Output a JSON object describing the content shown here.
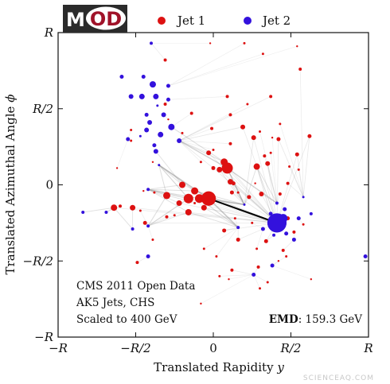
{
  "logo": {
    "text_m": "M",
    "text_od": "OD"
  },
  "legend": [
    {
      "label": "Jet 1",
      "color": "#dd1111"
    },
    {
      "label": "Jet 2",
      "color": "#3311dd"
    }
  ],
  "info": {
    "line1": "CMS 2011 Open Data",
    "line2": "AK5 Jets, CHS",
    "line3": "Scaled to 400 GeV",
    "emd_label": "EMD",
    "emd_value": ": 159.3 GeV"
  },
  "watermark": "SCIENCEAQ.COM",
  "chart_data": {
    "type": "scatter",
    "xlabel_main": "Translated Rapidity ",
    "xlabel_var": "y",
    "ylabel_main": "Translated Azimuthal Angle ",
    "ylabel_var": "ϕ",
    "xlim": [
      -1,
      1
    ],
    "ylim": [
      -1,
      1
    ],
    "x_ticks": [
      {
        "value": -1,
        "label": "−R"
      },
      {
        "value": -0.5,
        "label": "−R/2"
      },
      {
        "value": 0,
        "label": "0"
      },
      {
        "value": 0.5,
        "label": "R/2"
      },
      {
        "value": 1,
        "label": "R"
      }
    ],
    "y_ticks": [
      {
        "value": -1,
        "label": "−R"
      },
      {
        "value": -0.5,
        "label": "−R/2"
      },
      {
        "value": 0,
        "label": "0"
      },
      {
        "value": 0.5,
        "label": "R/2"
      },
      {
        "value": 1,
        "label": "R"
      }
    ],
    "series": [
      {
        "name": "Jet 1",
        "color": "#dd1111",
        "points": [
          [
            -0.03,
            -0.09,
            9
          ],
          [
            0.09,
            0.11,
            7
          ],
          [
            -0.16,
            -0.09,
            6
          ],
          [
            -0.09,
            -0.09,
            5.5
          ],
          [
            -0.12,
            -0.04,
            4.5
          ],
          [
            0.07,
            0.15,
            4.5
          ],
          [
            -0.3,
            -0.07,
            4.5
          ],
          [
            -0.2,
            0.0,
            4
          ],
          [
            -0.16,
            -0.18,
            4
          ],
          [
            -0.06,
            -0.15,
            3.5
          ],
          [
            0.28,
            0.12,
            4
          ],
          [
            0.04,
            0.1,
            3.5
          ],
          [
            -0.22,
            -0.12,
            3.5
          ],
          [
            -0.64,
            -0.15,
            4
          ],
          [
            -0.52,
            -0.15,
            3.5
          ],
          [
            0.11,
            0.02,
            3.5
          ],
          [
            0.26,
            0.31,
            3
          ],
          [
            0.31,
            -0.06,
            3
          ],
          [
            0.35,
            0.14,
            3
          ],
          [
            0.19,
            0.38,
            3
          ],
          [
            -0.03,
            0.21,
            3
          ],
          [
            0.07,
            -0.3,
            2.5
          ],
          [
            0.12,
            -0.05,
            2.5
          ],
          [
            0.0,
            0.11,
            2.5
          ],
          [
            0.42,
            0.3,
            2.5
          ],
          [
            0.16,
            -0.36,
            2.5
          ],
          [
            0.23,
            -0.08,
            2.5
          ],
          [
            -0.44,
            -0.25,
            2.5
          ],
          [
            0.34,
            -0.37,
            2.5
          ],
          [
            0.48,
            -0.22,
            2.5
          ],
          [
            0.13,
            0.01,
            2.5
          ],
          [
            0.54,
            0.2,
            2.5
          ],
          [
            0.62,
            0.32,
            2.5
          ],
          [
            0.45,
            -0.43,
            2
          ],
          [
            0.29,
            -0.54,
            2
          ],
          [
            0.33,
            0.19,
            2
          ],
          [
            0.11,
            0.27,
            2
          ],
          [
            0.12,
            -0.56,
            2
          ],
          [
            -0.49,
            -0.51,
            2
          ],
          [
            -0.6,
            -0.14,
            2
          ],
          [
            0.52,
            -0.31,
            2
          ],
          [
            0.43,
            -0.06,
            2
          ],
          [
            0.48,
            0.01,
            2
          ],
          [
            0.09,
            0.58,
            2
          ],
          [
            0.56,
            0.76,
            2
          ],
          [
            0.37,
            0.58,
            2
          ],
          [
            -0.3,
            -0.21,
            2
          ],
          [
            -0.31,
            0.82,
            2
          ],
          [
            -0.31,
            0.53,
            2
          ],
          [
            -0.14,
            0.47,
            2
          ],
          [
            -0.01,
            0.37,
            2
          ],
          [
            0.11,
            0.46,
            2
          ],
          [
            0.3,
            0.35,
            1.5
          ],
          [
            0.43,
            0.4,
            1.5
          ],
          [
            0.49,
            0.12,
            1.5
          ],
          [
            0.55,
            0.1,
            1.5
          ],
          [
            -0.47,
            -0.17,
            1.5
          ],
          [
            -0.39,
            -0.36,
            1.5
          ],
          [
            -0.06,
            -0.42,
            1.5
          ],
          [
            0.02,
            -0.47,
            1.5
          ],
          [
            0.14,
            -0.22,
            1.5
          ],
          [
            0.25,
            -0.25,
            1.5
          ],
          [
            0.28,
            -0.42,
            1.5
          ],
          [
            0.35,
            -0.64,
            1.5
          ],
          [
            0.3,
            -0.68,
            1.5
          ],
          [
            0.47,
            -0.47,
            1.5
          ],
          [
            0.58,
            -0.26,
            1.5
          ],
          [
            0.37,
            0.21,
            1.5
          ],
          [
            0.22,
            0.53,
            1.5
          ],
          [
            -0.2,
            0.34,
            1.5
          ],
          [
            -0.08,
            0.15,
            1.5
          ],
          [
            -0.12,
            -0.12,
            1.5
          ],
          [
            -0.53,
            0.29,
            1.5
          ],
          [
            -0.53,
            0.36,
            1.5
          ],
          [
            -0.25,
            -0.2,
            1.5
          ],
          [
            -0.38,
            -0.05,
            1.5
          ],
          [
            0.04,
            -0.6,
            1.5
          ],
          [
            0.16,
            -0.05,
            1.5
          ],
          [
            0.0,
            0.23,
            1.5
          ],
          [
            0.32,
            0.86,
            1.5
          ],
          [
            0.2,
            0.93,
            1.5
          ],
          [
            -0.02,
            0.93,
            1.2
          ],
          [
            0.54,
            0.91,
            1.2
          ],
          [
            0.38,
            0.31,
            1.2
          ],
          [
            -0.08,
            -0.78,
            1.2
          ],
          [
            0.42,
            -0.5,
            1.2
          ],
          [
            -0.29,
            0.43,
            1.2
          ],
          [
            0.1,
            -0.62,
            1.2
          ],
          [
            0.63,
            -0.62,
            1.2
          ],
          [
            -0.45,
            -0.04,
            1.2
          ],
          [
            0.27,
            0.01,
            1.2
          ],
          [
            -0.62,
            0.11,
            1.2
          ],
          [
            -0.39,
            0.15,
            1.2
          ]
        ]
      },
      {
        "name": "Jet 2",
        "color": "#3311dd",
        "points": [
          [
            0.41,
            -0.25,
            12
          ],
          [
            0.45,
            -0.22,
            5.5
          ],
          [
            -0.39,
            0.66,
            4
          ],
          [
            -0.27,
            0.38,
            4
          ],
          [
            -0.37,
            0.58,
            3.5
          ],
          [
            -0.34,
            0.33,
            3.5
          ],
          [
            -0.46,
            0.58,
            3.5
          ],
          [
            -0.41,
            0.41,
            3
          ],
          [
            -0.32,
            0.46,
            3
          ],
          [
            -0.43,
            0.36,
            3
          ],
          [
            -0.37,
            0.22,
            3
          ],
          [
            -0.22,
            0.29,
            3
          ],
          [
            -0.53,
            0.58,
            3
          ],
          [
            -0.45,
            0.71,
            2.5
          ],
          [
            -0.55,
            0.3,
            2.5
          ],
          [
            -0.43,
            0.46,
            2.5
          ],
          [
            -0.29,
            0.56,
            2.5
          ],
          [
            -0.38,
            0.26,
            2.5
          ],
          [
            0.46,
            -0.16,
            2.5
          ],
          [
            0.47,
            -0.32,
            2.5
          ],
          [
            0.52,
            -0.36,
            2.5
          ],
          [
            0.55,
            -0.22,
            2.5
          ],
          [
            0.32,
            -0.29,
            2.5
          ],
          [
            0.37,
            -0.19,
            2.5
          ],
          [
            -0.59,
            0.71,
            2.5
          ],
          [
            -0.29,
            0.65,
            2.5
          ],
          [
            0.38,
            -0.53,
            2.5
          ],
          [
            0.26,
            -0.59,
            2.5
          ],
          [
            -0.42,
            -0.47,
            2.5
          ],
          [
            -0.42,
            -0.03,
            2
          ],
          [
            0.63,
            -0.19,
            2
          ],
          [
            0.16,
            -0.28,
            2
          ],
          [
            -0.4,
            0.93,
            2
          ],
          [
            -0.69,
            -0.18,
            2
          ],
          [
            -0.84,
            -0.18,
            2
          ],
          [
            0.98,
            -0.47,
            2.5
          ],
          [
            -0.42,
            -0.27,
            2
          ],
          [
            -0.52,
            -0.29,
            2
          ],
          [
            0.39,
            -0.33,
            2
          ],
          [
            0.41,
            -0.12,
            2
          ],
          [
            0.58,
            -0.08,
            1.5
          ],
          [
            -0.36,
            0.52,
            1.5
          ],
          [
            -0.47,
            0.32,
            1.5
          ],
          [
            -0.35,
            0.13,
            1.5
          ],
          [
            0.2,
            -0.13,
            1.5
          ]
        ]
      }
    ],
    "flow_line": {
      "from": [
        -0.03,
        -0.09
      ],
      "to": [
        0.41,
        -0.25
      ]
    }
  }
}
